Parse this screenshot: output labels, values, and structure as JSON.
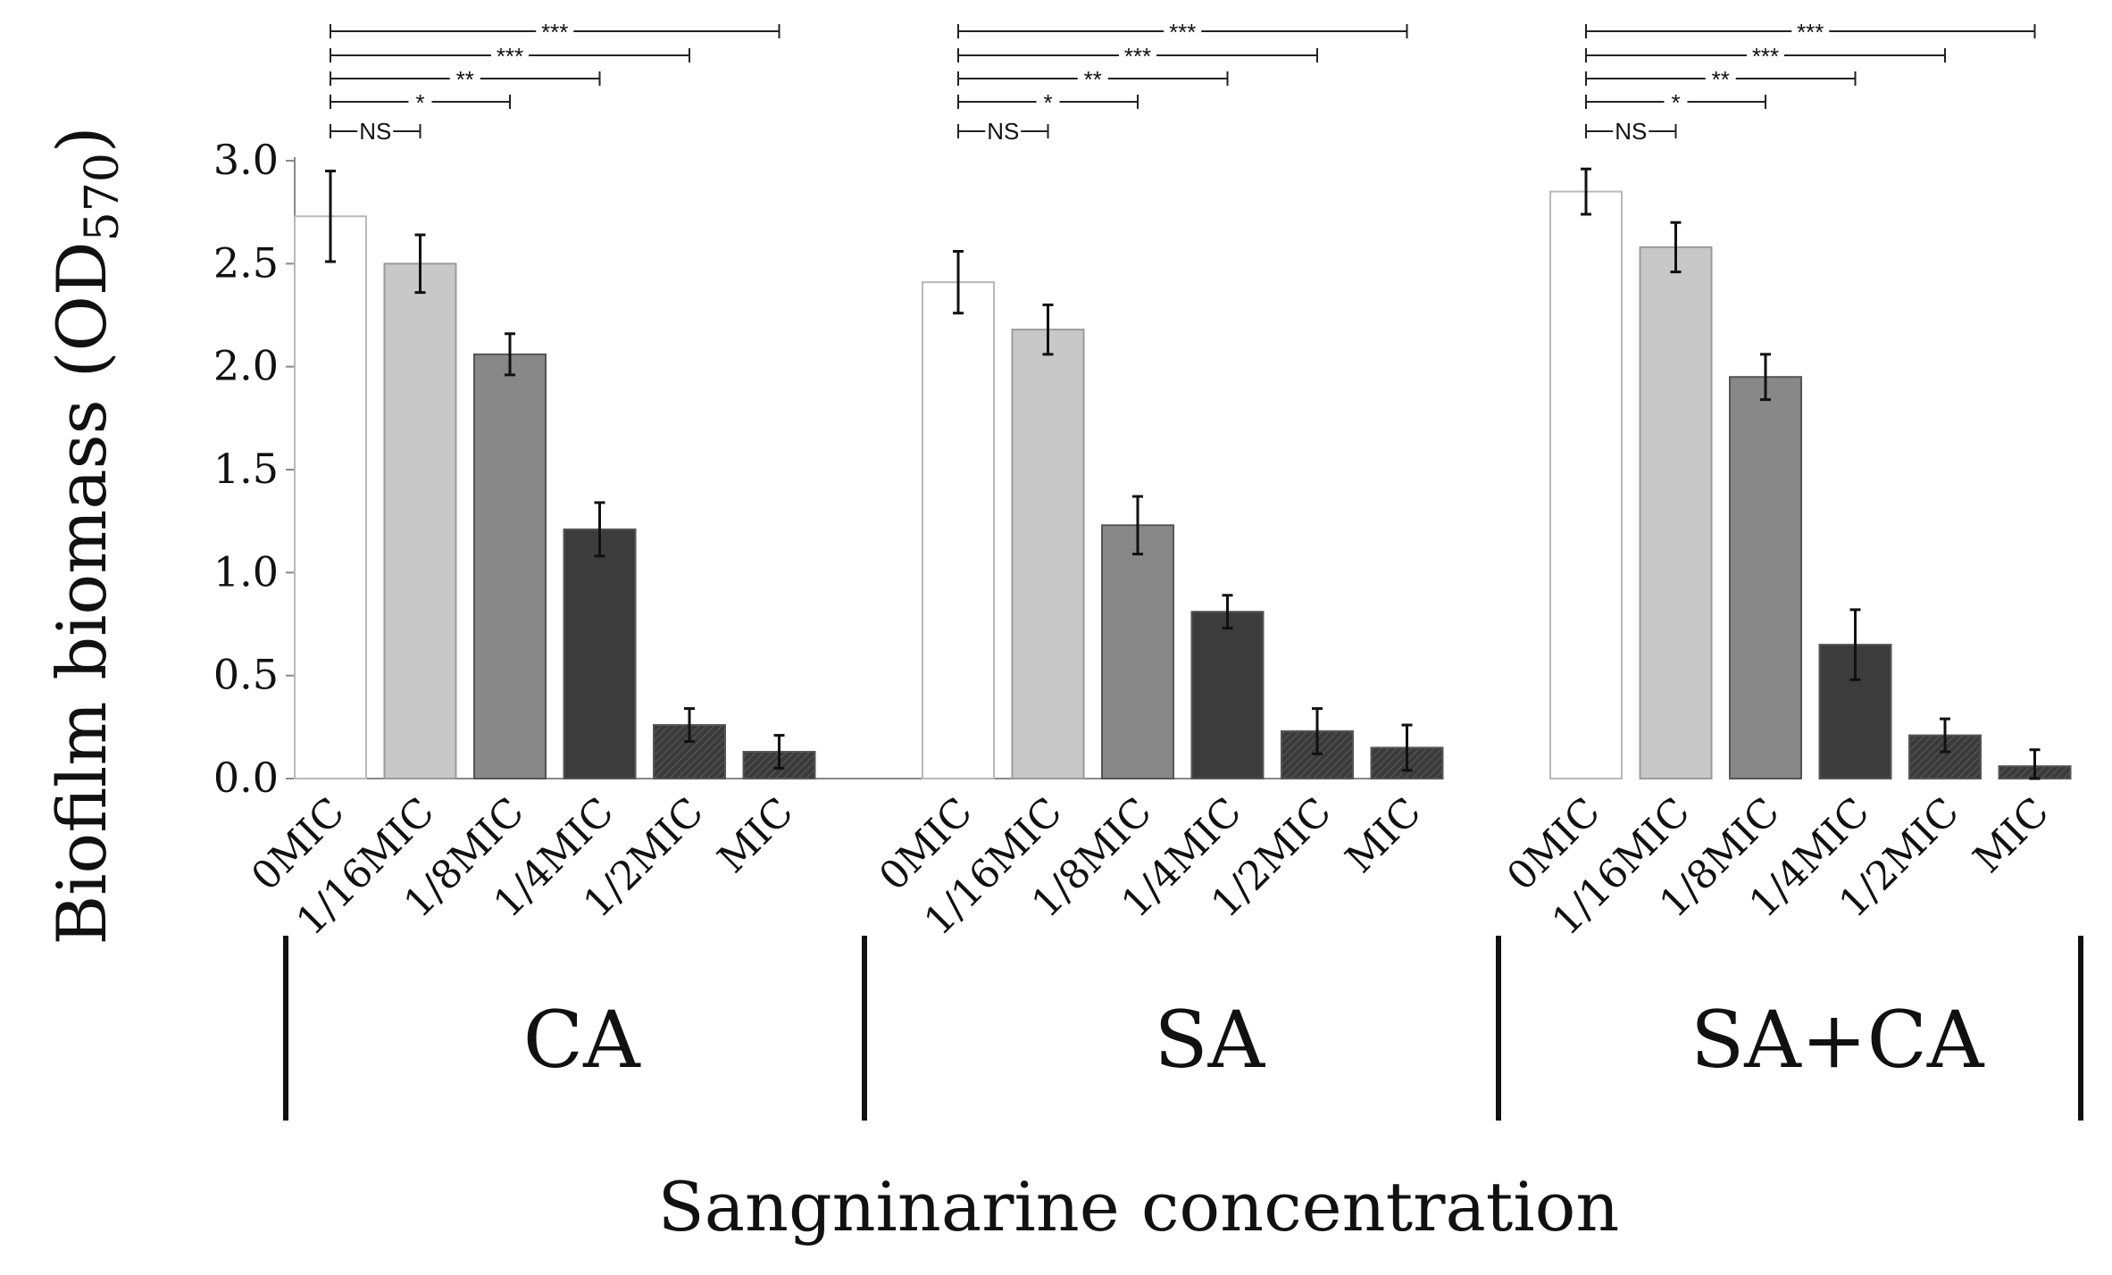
{
  "chart_data": {
    "type": "bar",
    "title": "",
    "ylabel": "Biofilm biomass (OD",
    "ylabel_subscript": "570",
    "ylabel_close": ")",
    "xlabel": "Sangninarine concentration",
    "ylim": [
      0,
      3.0
    ],
    "yticks": [
      0.0,
      0.5,
      1.0,
      1.5,
      2.0,
      2.5,
      3.0
    ],
    "ytick_labels": [
      "0.0",
      "0.5",
      "1.0",
      "1.5",
      "2.0",
      "2.5",
      "3.0"
    ],
    "categories": [
      "0MIC",
      "1/16MIC",
      "1/8MIC",
      "1/4MIC",
      "1/2MIC",
      "MIC"
    ],
    "category_colors": [
      "#ffffff",
      "#c8c8c8",
      "#888888",
      "#3c3c3c",
      "#3a3a3a",
      "#3a3a3a"
    ],
    "category_hatched": [
      false,
      false,
      false,
      false,
      true,
      true
    ],
    "groups": [
      {
        "name": "CA",
        "values": [
          2.73,
          2.5,
          2.06,
          1.21,
          0.26,
          0.13
        ],
        "errors": [
          0.22,
          0.14,
          0.1,
          0.13,
          0.08,
          0.08
        ],
        "comparisons": [
          {
            "to": "1/16MIC",
            "label": "NS"
          },
          {
            "to": "1/8MIC",
            "label": "*"
          },
          {
            "to": "1/4MIC",
            "label": "**"
          },
          {
            "to": "1/2MIC",
            "label": "***"
          },
          {
            "to": "MIC",
            "label": "***"
          }
        ]
      },
      {
        "name": "SA",
        "values": [
          2.41,
          2.18,
          1.23,
          0.81,
          0.23,
          0.15
        ],
        "errors": [
          0.15,
          0.12,
          0.14,
          0.08,
          0.11,
          0.11
        ],
        "comparisons": [
          {
            "to": "1/16MIC",
            "label": "NS"
          },
          {
            "to": "1/8MIC",
            "label": "*"
          },
          {
            "to": "1/4MIC",
            "label": "**"
          },
          {
            "to": "1/2MIC",
            "label": "***"
          },
          {
            "to": "MIC",
            "label": "***"
          }
        ]
      },
      {
        "name": "SA+CA",
        "values": [
          2.85,
          2.58,
          1.95,
          0.65,
          0.21,
          0.06
        ],
        "errors": [
          0.11,
          0.12,
          0.11,
          0.17,
          0.08,
          0.08
        ],
        "comparisons": [
          {
            "to": "1/16MIC",
            "label": "NS"
          },
          {
            "to": "1/8MIC",
            "label": "*"
          },
          {
            "to": "1/4MIC",
            "label": "**"
          },
          {
            "to": "1/2MIC",
            "label": "***"
          },
          {
            "to": "MIC",
            "label": "***"
          }
        ]
      }
    ]
  }
}
